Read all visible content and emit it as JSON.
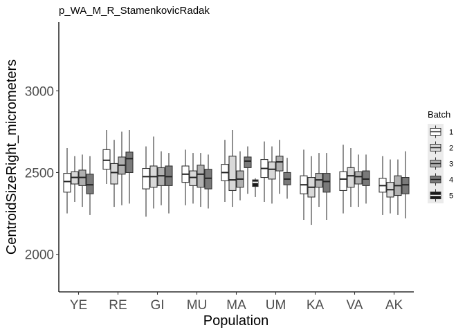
{
  "chart_data": {
    "type": "boxplot",
    "title": "p_WA_M_R_StamenkovicRadak",
    "xlabel": "Population",
    "ylabel": "CentroidSizeRight_micrometers",
    "ylim": [
      1770,
      3420
    ],
    "yticks": [
      2000,
      2500,
      3000
    ],
    "grid": false,
    "categories": [
      "YE",
      "RE",
      "GI",
      "MU",
      "MA",
      "UM",
      "KA",
      "VA",
      "AK"
    ],
    "legend": {
      "title": "Batch",
      "placement": "right",
      "entries": [
        "1",
        "2",
        "3",
        "4",
        "5"
      ]
    },
    "colors": {
      "batch1": "#ffffff",
      "batch2": "#d9d9d9",
      "batch3": "#b0b0b0",
      "batch4": "#7a7a7a",
      "batch5": "#1a1a1a"
    },
    "series": [
      {
        "name": "1",
        "boxes": [
          {
            "category": "YE",
            "whisker_low": 2250,
            "q1": 2380,
            "median": 2445,
            "q3": 2495,
            "whisker_high": 2650
          },
          {
            "category": "RE",
            "whisker_low": 2430,
            "q1": 2520,
            "median": 2575,
            "q3": 2640,
            "whisker_high": 2760
          },
          {
            "category": "GI",
            "whisker_low": 2230,
            "q1": 2400,
            "median": 2475,
            "q3": 2525,
            "whisker_high": 2660
          },
          {
            "category": "MU",
            "whisker_low": 2300,
            "q1": 2440,
            "median": 2490,
            "q3": 2540,
            "whisker_high": 2640
          },
          {
            "category": "MA",
            "whisker_low": 2320,
            "q1": 2450,
            "median": 2500,
            "q3": 2550,
            "whisker_high": 2700
          },
          {
            "category": "UM",
            "whisker_low": 2320,
            "q1": 2470,
            "median": 2525,
            "q3": 2580,
            "whisker_high": 2690
          },
          {
            "category": "KA",
            "whisker_low": 2210,
            "q1": 2370,
            "median": 2425,
            "q3": 2480,
            "whisker_high": 2640
          },
          {
            "category": "VA",
            "whisker_low": 2250,
            "q1": 2390,
            "median": 2460,
            "q3": 2505,
            "whisker_high": 2670
          },
          {
            "category": "AK",
            "whisker_low": 2240,
            "q1": 2380,
            "median": 2420,
            "q3": 2465,
            "whisker_high": 2600
          }
        ]
      },
      {
        "name": "2",
        "boxes": [
          {
            "category": "YE",
            "whisker_low": 2320,
            "q1": 2430,
            "median": 2470,
            "q3": 2505,
            "whisker_high": 2600
          },
          {
            "category": "RE",
            "whisker_low": 2290,
            "q1": 2430,
            "median": 2500,
            "q3": 2555,
            "whisker_high": 2700
          },
          {
            "category": "GI",
            "whisker_low": 2280,
            "q1": 2410,
            "median": 2475,
            "q3": 2540,
            "whisker_high": 2720
          },
          {
            "category": "MU",
            "whisker_low": 2310,
            "q1": 2420,
            "median": 2470,
            "q3": 2510,
            "whisker_high": 2620
          },
          {
            "category": "MA",
            "whisker_low": 2290,
            "q1": 2390,
            "median": 2455,
            "q3": 2600,
            "whisker_high": 2760
          },
          {
            "category": "UM",
            "whisker_low": 2310,
            "q1": 2460,
            "median": 2520,
            "q3": 2565,
            "whisker_high": 2660
          },
          {
            "category": "KA",
            "whisker_low": 2180,
            "q1": 2350,
            "median": 2410,
            "q3": 2470,
            "whisker_high": 2600
          },
          {
            "category": "VA",
            "whisker_low": 2290,
            "q1": 2410,
            "median": 2480,
            "q3": 2530,
            "whisker_high": 2650
          },
          {
            "category": "AK",
            "whisker_low": 2250,
            "q1": 2350,
            "median": 2395,
            "q3": 2440,
            "whisker_high": 2580
          }
        ]
      },
      {
        "name": "3",
        "boxes": [
          {
            "category": "YE",
            "whisker_low": 2290,
            "q1": 2420,
            "median": 2470,
            "q3": 2515,
            "whisker_high": 2610
          },
          {
            "category": "RE",
            "whisker_low": 2300,
            "q1": 2490,
            "median": 2545,
            "q3": 2595,
            "whisker_high": 2750
          },
          {
            "category": "GI",
            "whisker_low": 2300,
            "q1": 2420,
            "median": 2480,
            "q3": 2530,
            "whisker_high": 2630
          },
          {
            "category": "MU",
            "whisker_low": 2290,
            "q1": 2410,
            "median": 2490,
            "q3": 2545,
            "whisker_high": 2620
          },
          {
            "category": "MA",
            "whisker_low": 2330,
            "q1": 2410,
            "median": 2460,
            "q3": 2510,
            "whisker_high": 2630
          },
          {
            "category": "UM",
            "whisker_low": 2370,
            "q1": 2510,
            "median": 2565,
            "q3": 2600,
            "whisker_high": 2700
          },
          {
            "category": "KA",
            "whisker_low": 2290,
            "q1": 2410,
            "median": 2455,
            "q3": 2495,
            "whisker_high": 2620
          },
          {
            "category": "VA",
            "whisker_low": 2290,
            "q1": 2430,
            "median": 2475,
            "q3": 2505,
            "whisker_high": 2610
          },
          {
            "category": "AK",
            "whisker_low": 2240,
            "q1": 2360,
            "median": 2420,
            "q3": 2480,
            "whisker_high": 2580
          }
        ]
      },
      {
        "name": "4",
        "boxes": [
          {
            "category": "YE",
            "whisker_low": 2240,
            "q1": 2370,
            "median": 2425,
            "q3": 2490,
            "whisker_high": 2600
          },
          {
            "category": "RE",
            "whisker_low": 2310,
            "q1": 2500,
            "median": 2585,
            "q3": 2625,
            "whisker_high": 2760
          },
          {
            "category": "GI",
            "whisker_low": 2250,
            "q1": 2420,
            "median": 2475,
            "q3": 2540,
            "whisker_high": 2620
          },
          {
            "category": "MU",
            "whisker_low": 2280,
            "q1": 2400,
            "median": 2465,
            "q3": 2520,
            "whisker_high": 2610
          },
          {
            "category": "MA",
            "whisker_low": 2370,
            "q1": 2530,
            "median": 2570,
            "q3": 2595,
            "whisker_high": 2660
          },
          {
            "category": "UM",
            "whisker_low": 2340,
            "q1": 2425,
            "median": 2460,
            "q3": 2500,
            "whisker_high": 2590
          },
          {
            "category": "KA",
            "whisker_low": 2210,
            "q1": 2380,
            "median": 2445,
            "q3": 2495,
            "whisker_high": 2620
          },
          {
            "category": "VA",
            "whisker_low": 2310,
            "q1": 2420,
            "median": 2460,
            "q3": 2510,
            "whisker_high": 2610
          },
          {
            "category": "AK",
            "whisker_low": 2220,
            "q1": 2370,
            "median": 2425,
            "q3": 2470,
            "whisker_high": 2630
          }
        ]
      },
      {
        "name": "5",
        "boxes": [
          {
            "category": "MA",
            "whisker_low": 2350,
            "q1": 2415,
            "median": 2440,
            "q3": 2455,
            "whisker_high": 2465
          }
        ]
      }
    ]
  }
}
